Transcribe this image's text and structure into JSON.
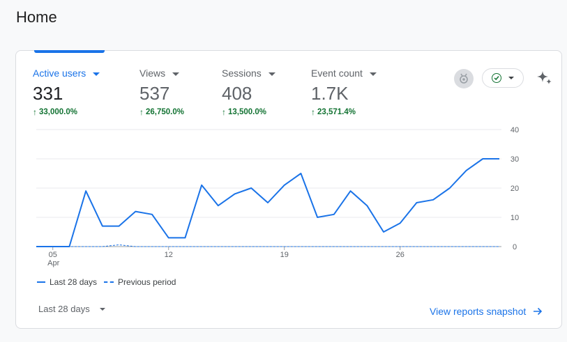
{
  "page": {
    "title": "Home"
  },
  "metrics": [
    {
      "label": "Active users",
      "value": "331",
      "change": "33,000.0%"
    },
    {
      "label": "Views",
      "value": "537",
      "change": "26,750.0%"
    },
    {
      "label": "Sessions",
      "value": "408",
      "change": "13,500.0%"
    },
    {
      "label": "Event count",
      "value": "1.7K",
      "change": "23,571.4%"
    }
  ],
  "colors": {
    "accent": "#1a73e8",
    "positive": "#137333"
  },
  "chart_data": {
    "type": "line",
    "x": [
      4,
      5,
      6,
      7,
      8,
      9,
      10,
      11,
      12,
      13,
      14,
      15,
      16,
      17,
      18,
      19,
      20,
      21,
      22,
      23,
      24,
      25,
      26,
      27,
      28,
      29,
      30,
      31,
      32
    ],
    "x_ticks": [
      {
        "x": 5,
        "label": "05",
        "sub": "Apr"
      },
      {
        "x": 12,
        "label": "12"
      },
      {
        "x": 19,
        "label": "19"
      },
      {
        "x": 26,
        "label": "26"
      }
    ],
    "y_ticks": [
      "0",
      "10",
      "20",
      "30",
      "40"
    ],
    "ylim": [
      0,
      40
    ],
    "grid": true,
    "legend_position": "bottom-left",
    "series": [
      {
        "name": "Last 28 days",
        "style": "solid",
        "values": [
          0,
          0,
          0,
          19,
          7,
          7,
          12,
          11,
          3,
          3,
          21,
          14,
          18,
          20,
          15,
          21,
          25,
          10,
          11,
          19,
          14,
          5,
          8,
          15,
          16,
          20,
          26,
          30,
          30
        ]
      },
      {
        "name": "Previous period",
        "style": "dashed",
        "values": [
          0,
          0,
          0,
          0,
          0,
          0.6,
          0,
          0,
          0,
          0,
          0,
          0,
          0,
          0,
          0,
          0,
          0,
          0,
          0,
          0,
          0,
          0,
          0,
          0,
          0,
          0,
          0,
          0,
          0
        ]
      }
    ]
  },
  "footer": {
    "date_range": "Last 28 days",
    "view_link": "View reports snapshot"
  }
}
